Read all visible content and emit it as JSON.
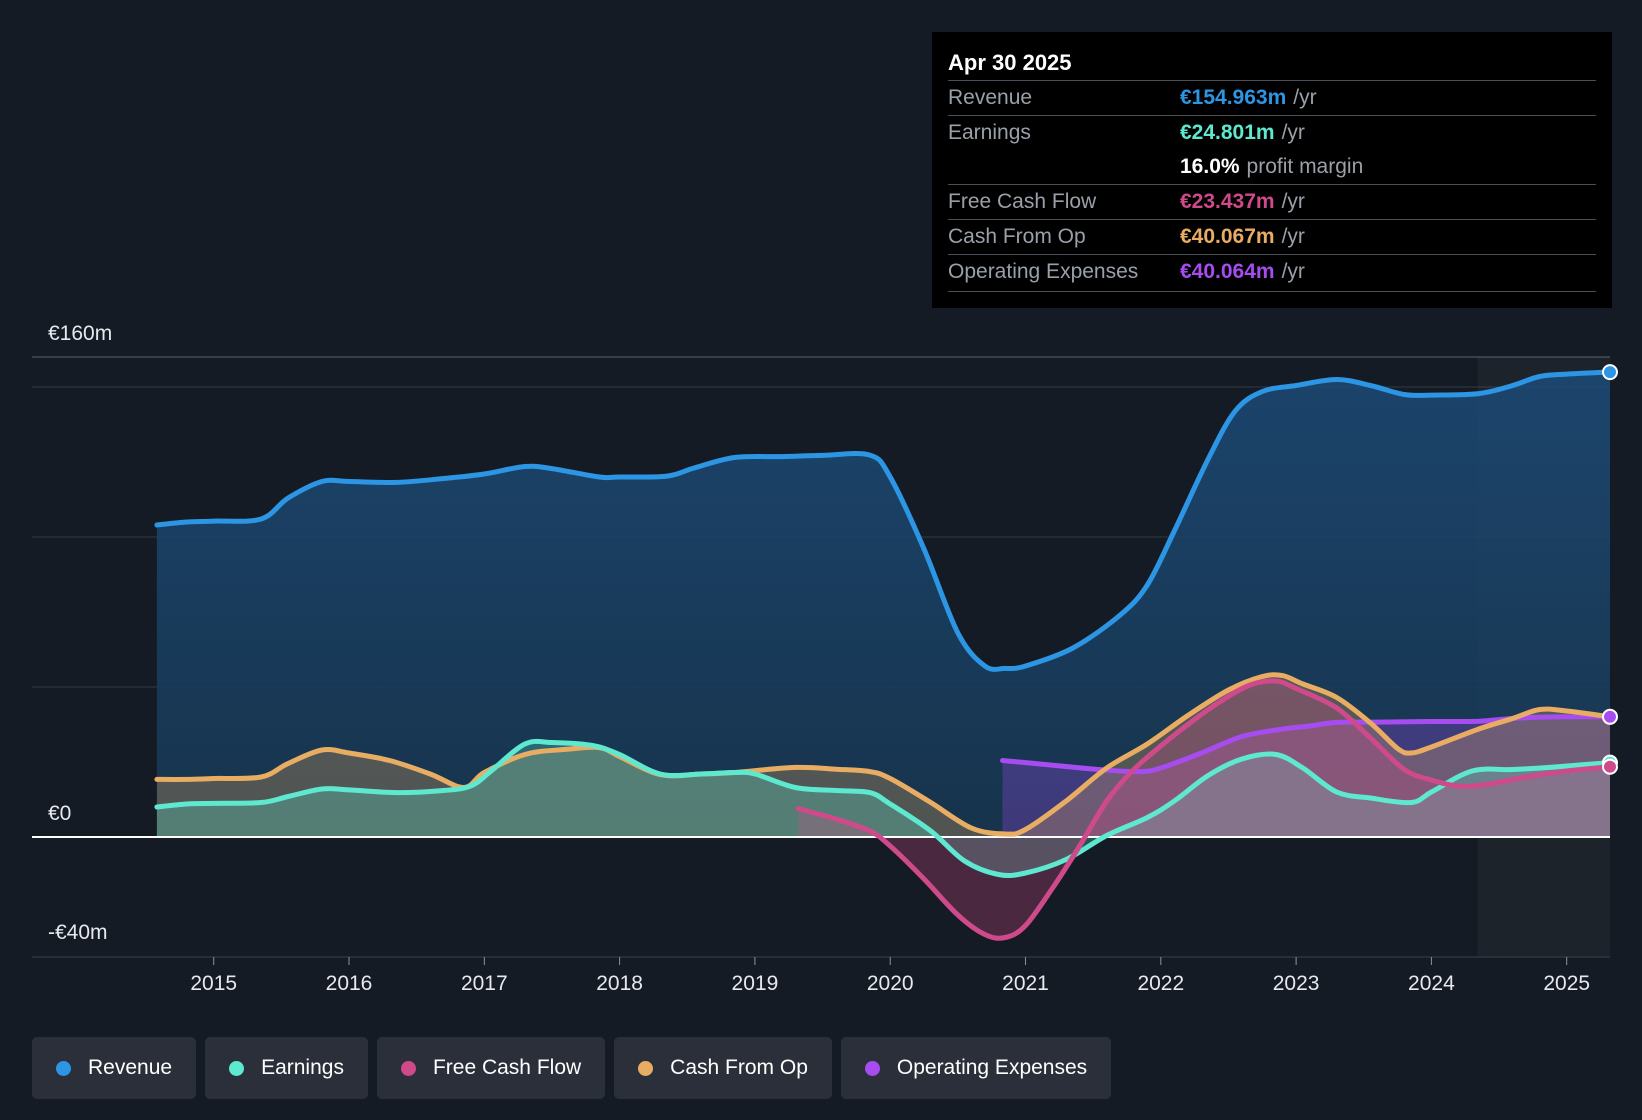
{
  "tooltip": {
    "date": "Apr 30 2025",
    "rows": [
      {
        "label": "Revenue",
        "value": "€154.963m",
        "unit": "/yr",
        "color": "#2c95e4"
      },
      {
        "label": "Earnings",
        "value": "€24.801m",
        "unit": "/yr",
        "color": "#5ee8cf"
      },
      {
        "label": "",
        "value": "16.0%",
        "unit": "profit margin",
        "color": "#ffffff"
      },
      {
        "label": "Free Cash Flow",
        "value": "€23.437m",
        "unit": "/yr",
        "color": "#cf4a8a"
      },
      {
        "label": "Cash From Op",
        "value": "€40.067m",
        "unit": "/yr",
        "color": "#e8ad62"
      },
      {
        "label": "Operating Expenses",
        "value": "€40.064m",
        "unit": "/yr",
        "color": "#a64cf0"
      }
    ]
  },
  "legend": [
    {
      "label": "Revenue",
      "color": "#2c95e4"
    },
    {
      "label": "Earnings",
      "color": "#5ee8cf"
    },
    {
      "label": "Free Cash Flow",
      "color": "#cf4a8a"
    },
    {
      "label": "Cash From Op",
      "color": "#e8ad62"
    },
    {
      "label": "Operating Expenses",
      "color": "#a64cf0"
    }
  ],
  "chart_data": {
    "type": "area",
    "title": "",
    "xlabel": "",
    "ylabel": "",
    "y_labels": [
      "€160m",
      "€0",
      "-€40m"
    ],
    "x_tick_labels": [
      "2015",
      "2016",
      "2017",
      "2018",
      "2019",
      "2020",
      "2021",
      "2022",
      "2023",
      "2024",
      "2025"
    ],
    "x_ticks": [
      2015,
      2016,
      2017,
      2018,
      2019,
      2020,
      2021,
      2022,
      2023,
      2024,
      2025
    ],
    "xlim": [
      2014.13,
      2025.32
    ],
    "ylim": [
      -40,
      160
    ],
    "forecast_start": 2024.34,
    "series": [
      {
        "name": "Revenue",
        "color": "#2c95e4",
        "end_marker": true,
        "points": [
          [
            2014.58,
            104
          ],
          [
            2014.8,
            105
          ],
          [
            2015.0,
            105.3
          ],
          [
            2015.35,
            106
          ],
          [
            2015.55,
            113
          ],
          [
            2015.8,
            118.5
          ],
          [
            2016.0,
            118.5
          ],
          [
            2016.35,
            118.2
          ],
          [
            2016.7,
            119.5
          ],
          [
            2017.0,
            121
          ],
          [
            2017.3,
            123.5
          ],
          [
            2017.5,
            122.8
          ],
          [
            2017.85,
            120
          ],
          [
            2018.0,
            120
          ],
          [
            2018.35,
            120.3
          ],
          [
            2018.55,
            123
          ],
          [
            2018.85,
            126.5
          ],
          [
            2019.2,
            126.8
          ],
          [
            2019.5,
            127.2
          ],
          [
            2019.85,
            127.3
          ],
          [
            2020.0,
            120
          ],
          [
            2020.25,
            96
          ],
          [
            2020.5,
            68
          ],
          [
            2020.7,
            57
          ],
          [
            2020.85,
            56.2
          ],
          [
            2021.0,
            57
          ],
          [
            2021.35,
            63
          ],
          [
            2021.7,
            74
          ],
          [
            2021.9,
            84
          ],
          [
            2022.1,
            102
          ],
          [
            2022.35,
            126
          ],
          [
            2022.55,
            142
          ],
          [
            2022.75,
            148.5
          ],
          [
            2023.0,
            150.5
          ],
          [
            2023.3,
            152.5
          ],
          [
            2023.55,
            150.5
          ],
          [
            2023.8,
            147.5
          ],
          [
            2024.0,
            147.3
          ],
          [
            2024.35,
            147.8
          ],
          [
            2024.6,
            150.5
          ],
          [
            2024.8,
            153.5
          ],
          [
            2025.0,
            154.3
          ],
          [
            2025.32,
            154.963
          ]
        ]
      },
      {
        "name": "Operating Expenses",
        "color": "#a64cf0",
        "end_marker": true,
        "points": [
          [
            2020.83,
            25.5
          ],
          [
            2021.0,
            24.8
          ],
          [
            2021.3,
            23.5
          ],
          [
            2021.6,
            22.3
          ],
          [
            2021.85,
            21.8
          ],
          [
            2022.0,
            23
          ],
          [
            2022.3,
            28
          ],
          [
            2022.6,
            33.5
          ],
          [
            2022.9,
            36
          ],
          [
            2023.1,
            37
          ],
          [
            2023.3,
            38.2
          ],
          [
            2023.6,
            38.3
          ],
          [
            2024.0,
            38.5
          ],
          [
            2024.35,
            38.6
          ],
          [
            2024.6,
            39.5
          ],
          [
            2024.85,
            40
          ],
          [
            2025.32,
            40.064
          ]
        ]
      },
      {
        "name": "Cash From Op",
        "color": "#e8ad62",
        "end_marker": false,
        "points": [
          [
            2014.58,
            19.2
          ],
          [
            2014.8,
            19.2
          ],
          [
            2015.0,
            19.5
          ],
          [
            2015.35,
            20
          ],
          [
            2015.55,
            24.5
          ],
          [
            2015.8,
            29
          ],
          [
            2016.0,
            28
          ],
          [
            2016.3,
            25.5
          ],
          [
            2016.6,
            21
          ],
          [
            2016.85,
            16.5
          ],
          [
            2017.0,
            21.5
          ],
          [
            2017.3,
            27.5
          ],
          [
            2017.6,
            29.2
          ],
          [
            2017.85,
            29.8
          ],
          [
            2018.0,
            26.8
          ],
          [
            2018.3,
            20.8
          ],
          [
            2018.6,
            21
          ],
          [
            2018.85,
            21.5
          ],
          [
            2019.3,
            23.2
          ],
          [
            2019.6,
            22.6
          ],
          [
            2019.85,
            21.8
          ],
          [
            2020.0,
            19.5
          ],
          [
            2020.3,
            11.5
          ],
          [
            2020.6,
            3
          ],
          [
            2020.85,
            1
          ],
          [
            2021.0,
            2.5
          ],
          [
            2021.3,
            12
          ],
          [
            2021.6,
            23
          ],
          [
            2021.9,
            31
          ],
          [
            2022.2,
            40.5
          ],
          [
            2022.5,
            49
          ],
          [
            2022.75,
            53.5
          ],
          [
            2022.9,
            53.8
          ],
          [
            2023.05,
            51
          ],
          [
            2023.3,
            46.5
          ],
          [
            2023.55,
            38
          ],
          [
            2023.75,
            29.5
          ],
          [
            2023.85,
            28
          ],
          [
            2024.0,
            30
          ],
          [
            2024.35,
            36
          ],
          [
            2024.6,
            39.5
          ],
          [
            2024.8,
            42.5
          ],
          [
            2025.0,
            42
          ],
          [
            2025.32,
            40.067
          ]
        ]
      },
      {
        "name": "Earnings",
        "color": "#5ee8cf",
        "end_marker": true,
        "points": [
          [
            2014.58,
            10
          ],
          [
            2014.8,
            11
          ],
          [
            2015.0,
            11.2
          ],
          [
            2015.35,
            11.5
          ],
          [
            2015.55,
            13.5
          ],
          [
            2015.8,
            16
          ],
          [
            2016.0,
            15.7
          ],
          [
            2016.35,
            14.8
          ],
          [
            2016.7,
            15.5
          ],
          [
            2016.9,
            17
          ],
          [
            2017.05,
            22
          ],
          [
            2017.3,
            31
          ],
          [
            2017.5,
            31.5
          ],
          [
            2017.8,
            30.5
          ],
          [
            2018.0,
            27.5
          ],
          [
            2018.3,
            21
          ],
          [
            2018.6,
            21
          ],
          [
            2018.85,
            21.5
          ],
          [
            2019.0,
            21
          ],
          [
            2019.3,
            16.5
          ],
          [
            2019.6,
            15.5
          ],
          [
            2019.85,
            14.8
          ],
          [
            2020.0,
            11
          ],
          [
            2020.3,
            2
          ],
          [
            2020.55,
            -8
          ],
          [
            2020.8,
            -12.5
          ],
          [
            2021.0,
            -12
          ],
          [
            2021.3,
            -7.5
          ],
          [
            2021.6,
            0.5
          ],
          [
            2021.9,
            6.5
          ],
          [
            2022.1,
            12
          ],
          [
            2022.35,
            20.5
          ],
          [
            2022.6,
            26
          ],
          [
            2022.85,
            27.5
          ],
          [
            2023.05,
            23
          ],
          [
            2023.3,
            15
          ],
          [
            2023.55,
            13
          ],
          [
            2023.85,
            11.5
          ],
          [
            2024.0,
            15
          ],
          [
            2024.3,
            22
          ],
          [
            2024.6,
            22.5
          ],
          [
            2024.9,
            23.3
          ],
          [
            2025.32,
            24.801
          ]
        ]
      },
      {
        "name": "Free Cash Flow",
        "color": "#cf4a8a",
        "end_marker": true,
        "points": [
          [
            2019.32,
            9.5
          ],
          [
            2019.6,
            6
          ],
          [
            2019.85,
            2
          ],
          [
            2020.0,
            -3
          ],
          [
            2020.25,
            -14
          ],
          [
            2020.5,
            -26
          ],
          [
            2020.7,
            -32.5
          ],
          [
            2020.85,
            -33.5
          ],
          [
            2021.0,
            -29.5
          ],
          [
            2021.2,
            -17
          ],
          [
            2021.4,
            -3
          ],
          [
            2021.6,
            12
          ],
          [
            2021.8,
            22.5
          ],
          [
            2022.1,
            34
          ],
          [
            2022.4,
            44
          ],
          [
            2022.65,
            50.5
          ],
          [
            2022.85,
            52
          ],
          [
            2023.0,
            49.5
          ],
          [
            2023.3,
            43
          ],
          [
            2023.55,
            33
          ],
          [
            2023.8,
            22.5
          ],
          [
            2024.0,
            19
          ],
          [
            2024.2,
            17
          ],
          [
            2024.4,
            17.5
          ],
          [
            2024.7,
            20
          ],
          [
            2025.0,
            22
          ],
          [
            2025.32,
            23.437
          ]
        ]
      }
    ]
  }
}
